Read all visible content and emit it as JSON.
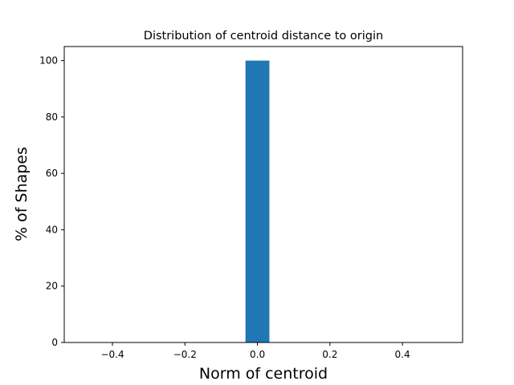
{
  "chart_data": {
    "type": "bar",
    "title": "Distribution of centroid distance to origin",
    "xlabel": "Norm of centroid",
    "ylabel": "% of Shapes",
    "xlim": [
      -0.533,
      0.566
    ],
    "ylim": [
      0,
      105
    ],
    "x_ticks": [
      -0.4,
      -0.2,
      0.0,
      0.2,
      0.4
    ],
    "x_tick_labels": [
      "−0.4",
      "−0.2",
      "0.0",
      "0.2",
      "0.4"
    ],
    "y_ticks": [
      0,
      20,
      40,
      60,
      80,
      100
    ],
    "y_tick_labels": [
      "0",
      "20",
      "40",
      "60",
      "80",
      "100"
    ],
    "bars": [
      {
        "x_start": -0.033,
        "x_end": 0.033,
        "value": 100
      }
    ],
    "bar_color": "#1f77b4",
    "grid": false,
    "legend": "none"
  }
}
